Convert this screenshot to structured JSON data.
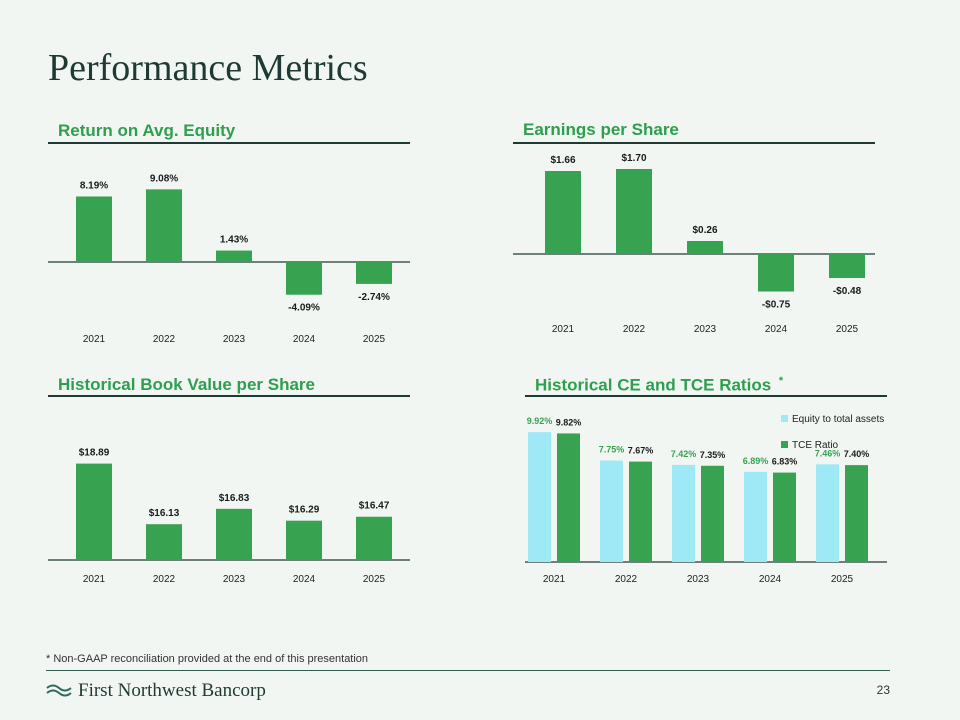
{
  "page": {
    "title": "Performance Metrics",
    "footnote": "* Non-GAAP reconciliation provided at the end of this presentation",
    "brand": "First Northwest Bancorp",
    "page_number": "23"
  },
  "sections": {
    "roe": {
      "title": "Return on Avg. Equity"
    },
    "eps": {
      "title": "Earnings per Share"
    },
    "bvps": {
      "title": "Historical Book Value per Share"
    },
    "ratios": {
      "title": "Historical CE and TCE Ratios",
      "asterisk": "*"
    }
  },
  "colors": {
    "bar": "#37a24f",
    "light_bar": "#9fe8f5",
    "axis": "#1f3a34",
    "title": "#2f9e4f",
    "text": "#1a1a1a"
  },
  "chart_data": [
    {
      "id": "roe",
      "type": "bar",
      "title": "Return on Avg. Equity",
      "categories": [
        "2021",
        "2022",
        "2023",
        "2024",
        "2025"
      ],
      "values": [
        8.19,
        9.08,
        1.43,
        -4.09,
        -2.74
      ],
      "labels": [
        "8.19%",
        "9.08%",
        "1.43%",
        "-4.09%",
        "-2.74%"
      ],
      "ylim": [
        -6,
        12
      ]
    },
    {
      "id": "eps",
      "type": "bar",
      "title": "Earnings per Share",
      "categories": [
        "2021",
        "2022",
        "2023",
        "2024",
        "2025"
      ],
      "values": [
        1.66,
        1.7,
        0.26,
        -0.75,
        -0.48
      ],
      "labels": [
        "$1.66",
        "$1.70",
        "$0.26",
        "-$0.75",
        "-$0.48"
      ],
      "ylim": [
        -1,
        2
      ]
    },
    {
      "id": "bvps",
      "type": "bar",
      "title": "Historical Book Value per Share",
      "categories": [
        "2021",
        "2022",
        "2023",
        "2024",
        "2025"
      ],
      "values": [
        18.89,
        16.13,
        16.83,
        16.29,
        16.47
      ],
      "labels": [
        "$18.89",
        "$16.13",
        "$16.83",
        "$16.29",
        "$16.47"
      ],
      "ylim": [
        14.5,
        19.6
      ]
    },
    {
      "id": "ratios",
      "type": "bar",
      "title": "Historical CE and TCE Ratios",
      "categories": [
        "2021",
        "2022",
        "2023",
        "2024",
        "2025"
      ],
      "ylim": [
        0,
        11
      ],
      "series": [
        {
          "name": "Equity to total assets",
          "values": [
            9.92,
            7.75,
            7.42,
            6.89,
            7.46
          ],
          "labels": [
            "9.92%",
            "7.75%",
            "7.42%",
            "6.89%",
            "7.46%"
          ]
        },
        {
          "name": "TCE Ratio",
          "values": [
            9.82,
            7.67,
            7.35,
            6.83,
            7.4
          ],
          "labels": [
            "9.82%",
            "7.67%",
            "7.35%",
            "6.83%",
            "7.40%"
          ]
        }
      ]
    }
  ]
}
